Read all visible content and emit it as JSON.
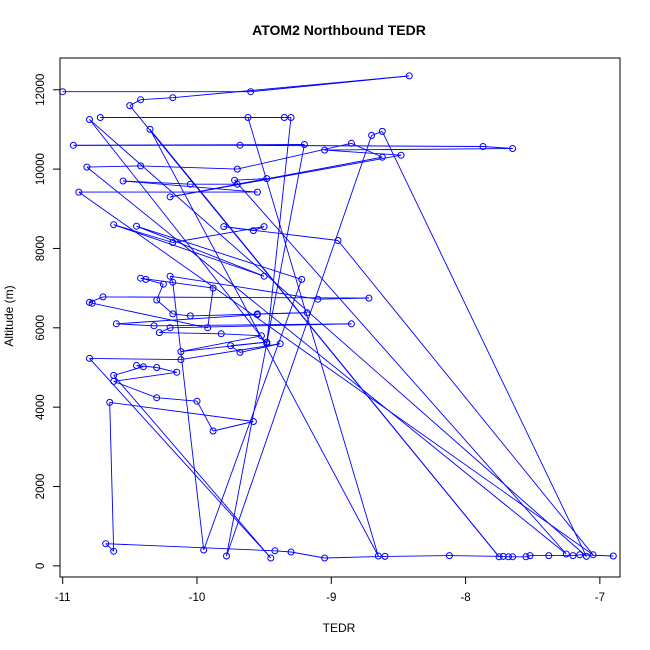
{
  "chart_data": {
    "type": "line",
    "title": "ATOM2 Northbound TEDR",
    "xlabel": "TEDR",
    "ylabel": "Altitude (m)",
    "xlim": [
      -11.02,
      -6.85
    ],
    "ylim": [
      -280,
      12800
    ],
    "xticks": [
      -11,
      -10,
      -9,
      -8,
      -7
    ],
    "yticks": [
      0,
      2000,
      4000,
      6000,
      8000,
      10000,
      12000
    ],
    "grid": false,
    "legend": "none",
    "colors": {
      "series": "#0000ff",
      "axis": "#000000",
      "background": "#ffffff"
    },
    "series": [
      {
        "markers": "open-circle",
        "points": [
          [
            -11.0,
            11950
          ],
          [
            -9.6,
            11950
          ],
          [
            -8.42,
            12350
          ],
          [
            -10.18,
            11800
          ],
          [
            -10.42,
            11750
          ],
          [
            -10.5,
            11600
          ],
          [
            -7.75,
            230
          ],
          [
            -10.35,
            11000
          ],
          [
            -8.65,
            250
          ],
          [
            -9.62,
            11300
          ],
          [
            -10.72,
            11300
          ],
          [
            -9.35,
            11300
          ],
          [
            -9.3,
            11300
          ],
          [
            -9.48,
            5600
          ],
          [
            -10.8,
            11250
          ],
          [
            -7.1,
            240
          ],
          [
            -8.62,
            10950
          ],
          [
            -8.7,
            10850
          ],
          [
            -9.78,
            250
          ],
          [
            -9.2,
            10620
          ],
          [
            -10.92,
            10600
          ],
          [
            -9.68,
            10600
          ],
          [
            -7.87,
            10570
          ],
          [
            -7.65,
            10520
          ],
          [
            -9.05,
            10480
          ],
          [
            -8.48,
            10350
          ],
          [
            -10.2,
            9300
          ],
          [
            -8.62,
            10300
          ],
          [
            -8.85,
            10650
          ],
          [
            -9.7,
            10000
          ],
          [
            -10.42,
            10080
          ],
          [
            -10.82,
            10050
          ],
          [
            -7.25,
            300
          ],
          [
            -9.72,
            9720
          ],
          [
            -9.48,
            9760
          ],
          [
            -9.7,
            9620
          ],
          [
            -10.05,
            9620
          ],
          [
            -10.55,
            9700
          ],
          [
            -9.55,
            9420
          ],
          [
            -10.88,
            9420
          ],
          [
            -7.05,
            280
          ],
          [
            -8.95,
            8200
          ],
          [
            -9.8,
            8550
          ],
          [
            -9.58,
            8450
          ],
          [
            -9.5,
            8550
          ],
          [
            -10.18,
            8150
          ],
          [
            -10.62,
            8600
          ],
          [
            -9.5,
            7300
          ],
          [
            -10.45,
            8560
          ],
          [
            -9.22,
            7220
          ],
          [
            -9.95,
            400
          ],
          [
            -10.18,
            7150
          ],
          [
            -10.2,
            7300
          ],
          [
            -9.1,
            6720
          ],
          [
            -8.72,
            6750
          ],
          [
            -10.7,
            6780
          ],
          [
            -10.8,
            6640
          ],
          [
            -10.78,
            6620
          ],
          [
            -9.92,
            6000
          ],
          [
            -9.88,
            7000
          ],
          [
            -10.42,
            7250
          ],
          [
            -10.38,
            7220
          ],
          [
            -10.25,
            7100
          ],
          [
            -10.3,
            6700
          ],
          [
            -10.18,
            6350
          ],
          [
            -10.05,
            6300
          ],
          [
            -9.18,
            6380
          ],
          [
            -9.55,
            6350
          ],
          [
            -9.55,
            6330
          ],
          [
            -10.6,
            6100
          ],
          [
            -10.32,
            6050
          ],
          [
            -8.85,
            6100
          ],
          [
            -10.2,
            6000
          ],
          [
            -10.28,
            5880
          ],
          [
            -9.82,
            5850
          ],
          [
            -9.52,
            5800
          ],
          [
            -10.12,
            5400
          ],
          [
            -9.48,
            5640
          ],
          [
            -9.75,
            5550
          ],
          [
            -9.68,
            5380
          ],
          [
            -9.38,
            5600
          ],
          [
            -10.12,
            5200
          ],
          [
            -10.8,
            5230
          ],
          [
            -9.45,
            200
          ],
          [
            -10.62,
            4800
          ],
          [
            -10.4,
            5020
          ],
          [
            -10.45,
            5050
          ],
          [
            -10.3,
            5000
          ],
          [
            -10.15,
            4880
          ],
          [
            -10.62,
            4650
          ],
          [
            -10.3,
            4240
          ],
          [
            -10.0,
            4150
          ],
          [
            -9.88,
            3400
          ],
          [
            -9.58,
            3640
          ],
          [
            -10.65,
            4120
          ],
          [
            -10.62,
            370
          ],
          [
            -10.68,
            560
          ],
          [
            -9.42,
            380
          ],
          [
            -9.3,
            350
          ],
          [
            -9.05,
            200
          ],
          [
            -8.6,
            240
          ],
          [
            -8.12,
            260
          ],
          [
            -7.72,
            240
          ],
          [
            -7.68,
            230
          ],
          [
            -7.65,
            230
          ],
          [
            -7.55,
            230
          ],
          [
            -7.52,
            260
          ],
          [
            -7.38,
            260
          ],
          [
            -7.2,
            260
          ],
          [
            -7.15,
            280
          ],
          [
            -6.9,
            250
          ]
        ]
      }
    ]
  }
}
